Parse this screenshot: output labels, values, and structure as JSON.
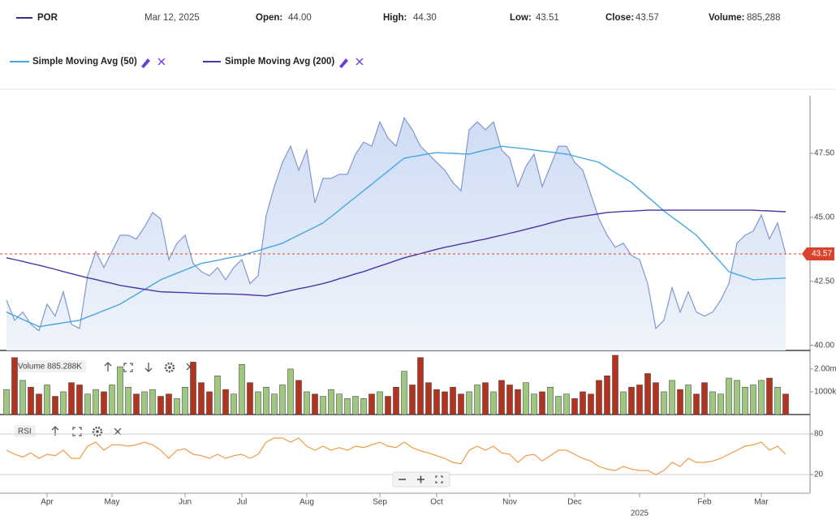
{
  "header": {
    "date": "Mar 12, 2025",
    "open_label": "Open:",
    "open": "44.00",
    "high_label": "High:",
    "high": "44.30",
    "low_label": "Low:",
    "low": "43.51",
    "close_label": "Close:",
    "close": "43.57",
    "volume_label": "Volume:",
    "volume": "885,288"
  },
  "chart_data": [
    {
      "type": "line",
      "fill": true,
      "categories": [
        null,
        null,
        null,
        null,
        null,
        "Apr",
        null,
        null,
        null,
        null,
        null,
        null,
        null,
        "May",
        null,
        null,
        null,
        null,
        null,
        null,
        null,
        null,
        "Jun",
        null,
        null,
        null,
        null,
        null,
        null,
        "Jul",
        null,
        null,
        null,
        null,
        null,
        null,
        null,
        "Aug",
        null,
        null,
        null,
        null,
        null,
        null,
        null,
        null,
        "Sep",
        null,
        null,
        null,
        null,
        null,
        null,
        "Oct",
        null,
        null,
        null,
        null,
        null,
        null,
        null,
        null,
        "Nov",
        null,
        null,
        null,
        null,
        null,
        null,
        null,
        "Dec",
        null,
        null,
        null,
        null,
        null,
        null,
        null,
        "2025",
        null,
        null,
        null,
        null,
        null,
        null,
        null,
        "Feb",
        null,
        null,
        null,
        null,
        null,
        null,
        "Mar",
        null,
        null,
        null
      ],
      "series": [
        {
          "name": "POR",
          "color": "#8197cf",
          "values": [
            41.77,
            40.98,
            41.3,
            40.82,
            40.57,
            41.61,
            41.14,
            42.09,
            40.82,
            40.66,
            42.72,
            43.67,
            43.04,
            43.67,
            44.3,
            44.3,
            44.15,
            44.62,
            45.19,
            44.94,
            43.35,
            43.99,
            44.3,
            43.2,
            42.88,
            42.72,
            43.04,
            42.56,
            43.04,
            43.35,
            42.41,
            42.72,
            45.09,
            46.2,
            47.15,
            47.78,
            46.84,
            47.63,
            45.57,
            46.52,
            46.52,
            46.68,
            46.68,
            47.47,
            47.94,
            47.78,
            48.73,
            48.1,
            47.78,
            48.89,
            48.42,
            47.78,
            47.47,
            47.15,
            46.84,
            46.36,
            46.04,
            48.42,
            48.73,
            48.42,
            48.73,
            47.63,
            47.31,
            46.2,
            46.99,
            47.47,
            46.2,
            46.99,
            47.78,
            47.78,
            47.15,
            46.84,
            45.89,
            44.94,
            44.3,
            43.83,
            43.99,
            43.51,
            43.35,
            42.41,
            40.66,
            40.98,
            42.25,
            41.3,
            42.09,
            41.3,
            41.14,
            41.3,
            41.77,
            42.41,
            43.99,
            44.3,
            44.46,
            45.09,
            44.15,
            44.78,
            43.57
          ]
        },
        {
          "name": "Simple Moving Avg (50)",
          "color": "#45a7e2",
          "values": [
            41.3,
            41.16,
            41.01,
            40.87,
            40.73,
            40.78,
            40.83,
            40.88,
            40.93,
            40.98,
            41.11,
            41.23,
            41.36,
            41.48,
            41.61,
            41.8,
            41.99,
            42.18,
            42.37,
            42.56,
            42.69,
            42.82,
            42.94,
            43.07,
            43.2,
            43.26,
            43.32,
            43.39,
            43.45,
            43.51,
            43.61,
            43.7,
            43.8,
            43.89,
            43.99,
            44.15,
            44.31,
            44.46,
            44.62,
            44.78,
            45.03,
            45.28,
            45.54,
            45.79,
            46.04,
            46.29,
            46.55,
            46.8,
            47.06,
            47.31,
            47.37,
            47.42,
            47.48,
            47.53,
            47.51,
            47.5,
            47.48,
            47.47,
            47.55,
            47.63,
            47.7,
            47.78,
            47.74,
            47.71,
            47.67,
            47.63,
            47.59,
            47.55,
            47.51,
            47.47,
            47.39,
            47.31,
            47.23,
            47.15,
            46.95,
            46.75,
            46.56,
            46.36,
            46.08,
            45.8,
            45.53,
            45.25,
            45.01,
            44.78,
            44.54,
            44.3,
            43.95,
            43.59,
            43.24,
            42.88,
            42.77,
            42.67,
            42.56,
            42.58,
            42.6,
            42.61,
            42.63
          ]
        },
        {
          "name": "Simple Moving Avg (200)",
          "color": "#4a36a8",
          "values": [
            43.42,
            43.35,
            43.28,
            43.2,
            43.13,
            43.05,
            42.97,
            42.88,
            42.8,
            42.72,
            42.64,
            42.57,
            42.49,
            42.42,
            42.34,
            42.29,
            42.24,
            42.19,
            42.14,
            42.09,
            42.08,
            42.07,
            42.06,
            42.04,
            42.03,
            42.02,
            42.01,
            42.01,
            42.0,
            41.99,
            41.97,
            41.95,
            41.93,
            42.0,
            42.07,
            42.14,
            42.21,
            42.27,
            42.34,
            42.41,
            42.5,
            42.6,
            42.69,
            42.79,
            42.88,
            42.99,
            43.1,
            43.2,
            43.31,
            43.42,
            43.5,
            43.58,
            43.67,
            43.75,
            43.83,
            43.89,
            43.96,
            44.02,
            44.09,
            44.15,
            44.23,
            44.3,
            44.38,
            44.45,
            44.53,
            44.61,
            44.69,
            44.78,
            44.86,
            44.94,
            44.99,
            45.04,
            45.09,
            45.14,
            45.19,
            45.21,
            45.23,
            45.24,
            45.26,
            45.28,
            45.28,
            45.28,
            45.28,
            45.28,
            45.28,
            45.28,
            45.28,
            45.28,
            45.28,
            45.28,
            45.28,
            45.28,
            45.28,
            45.26,
            45.25,
            45.23,
            45.22
          ]
        }
      ],
      "ylim": [
        39.8,
        49.75
      ],
      "yticks": [
        {
          "value": 40,
          "label": "40.00"
        },
        {
          "value": 42.5,
          "label": "42.50"
        },
        {
          "value": 45,
          "label": "45.00"
        },
        {
          "value": 47.5,
          "label": "47.50"
        }
      ],
      "last_price": 43.57,
      "last_price_color": "#d8432c"
    },
    {
      "type": "bar",
      "label": "Volume 885.288K",
      "up_color": "#9fc77f",
      "down_color": "#b3331e",
      "values": [
        1100000,
        2500000,
        1500000,
        1200000,
        900000,
        1300000,
        800000,
        1000000,
        1400000,
        1300000,
        900000,
        1100000,
        1000000,
        1300000,
        2100000,
        1200000,
        900000,
        1000000,
        1100000,
        800000,
        900000,
        700000,
        1200000,
        2300000,
        1400000,
        1000000,
        1700000,
        1100000,
        900000,
        2200000,
        1400000,
        1000000,
        1200000,
        900000,
        1300000,
        2000000,
        1500000,
        1000000,
        900000,
        800000,
        1100000,
        900000,
        700000,
        800000,
        700000,
        900000,
        1000000,
        800000,
        1200000,
        1900000,
        1300000,
        2500000,
        1400000,
        1100000,
        1000000,
        1200000,
        900000,
        1000000,
        1300000,
        1400000,
        1000000,
        1500000,
        1300000,
        1100000,
        1400000,
        900000,
        1000000,
        1200000,
        800000,
        900000,
        700000,
        1000000,
        900000,
        1500000,
        1700000,
        2600000,
        1000000,
        1200000,
        1300000,
        1800000,
        1400000,
        1000000,
        1500000,
        1100000,
        1300000,
        900000,
        1400000,
        1000000,
        900000,
        1600000,
        1500000,
        1200000,
        1300000,
        1500000,
        1600000,
        1200000,
        900000
      ],
      "ylim": [
        0,
        2600000
      ],
      "yticks": [
        {
          "value": 1000000,
          "label": "1000k"
        },
        {
          "value": 2000000,
          "label": "2.00m"
        }
      ]
    },
    {
      "type": "line",
      "label": "RSI",
      "grid": true,
      "series": [
        {
          "color": "#f09a45",
          "values": [
            56,
            50,
            46,
            52,
            44,
            50,
            48,
            56,
            44,
            44,
            62,
            68,
            56,
            64,
            64,
            62,
            64,
            68,
            64,
            56,
            44,
            56,
            58,
            50,
            48,
            44,
            50,
            44,
            48,
            50,
            44,
            50,
            68,
            74,
            74,
            68,
            74,
            62,
            56,
            62,
            56,
            60,
            56,
            62,
            60,
            64,
            68,
            62,
            60,
            68,
            60,
            55,
            52,
            48,
            44,
            38,
            36,
            56,
            62,
            56,
            62,
            52,
            50,
            38,
            48,
            50,
            40,
            48,
            56,
            56,
            50,
            44,
            40,
            32,
            28,
            26,
            32,
            28,
            26,
            26,
            20,
            26,
            38,
            32,
            44,
            38,
            38,
            40,
            44,
            50,
            56,
            62,
            64,
            68,
            56,
            62,
            50
          ]
        }
      ],
      "ylim": [
        -7.6,
        95.6
      ],
      "yticks": [
        20,
        80
      ]
    }
  ]
}
